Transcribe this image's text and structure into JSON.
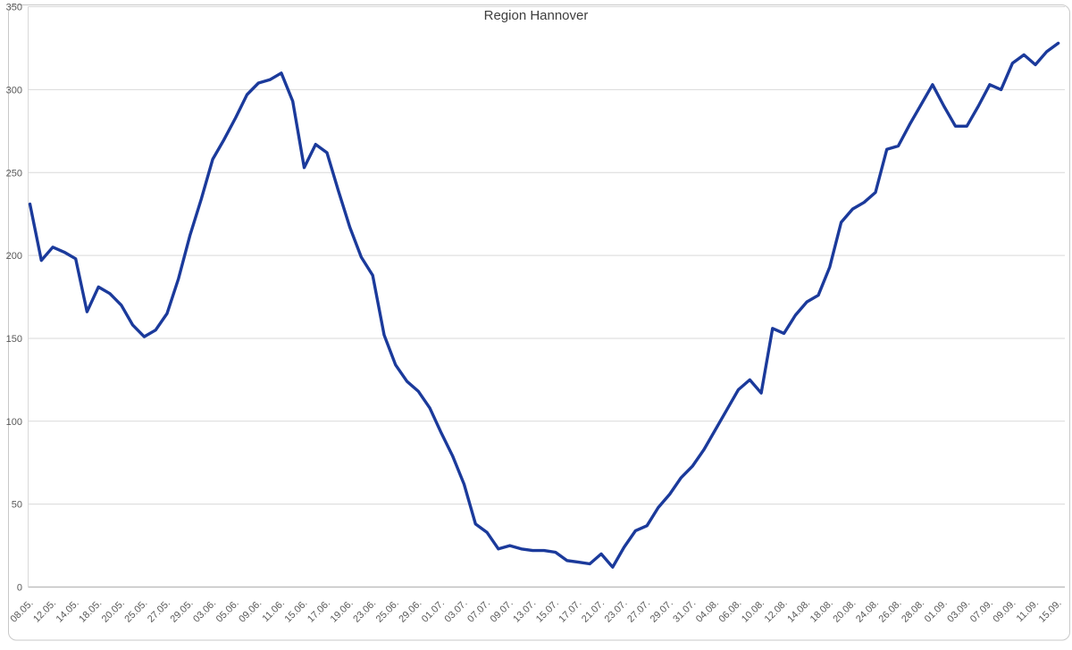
{
  "chart_data": {
    "type": "line",
    "title": "Region Hannover",
    "xlabel": "",
    "ylabel": "",
    "ylim": [
      0,
      350
    ],
    "yticks": [
      0,
      50,
      100,
      150,
      200,
      250,
      300,
      350
    ],
    "grid": "horizontal",
    "legend": "none",
    "x_tick_labels": [
      "08.05.",
      "12.05.",
      "14.05.",
      "18.05.",
      "20.05.",
      "25.05.",
      "27.05.",
      "29.05.",
      "03.06.",
      "05.06.",
      "09.06.",
      "11.06.",
      "15.06.",
      "17.06.",
      "19.06.",
      "23.06.",
      "25.06.",
      "29.06.",
      "01.07.",
      "03.07.",
      "07.07.",
      "09.07.",
      "13.07.",
      "15.07.",
      "17.07.",
      "21.07.",
      "23.07.",
      "27.07.",
      "29.07.",
      "31.07.",
      "04.08.",
      "06.08.",
      "10.08.",
      "12.08.",
      "14.08.",
      "18.08.",
      "20.08.",
      "24.08.",
      "26.08.",
      "28.08.",
      "01.09.",
      "03.09.",
      "07.09.",
      "09.09.",
      "11.09.",
      "15.09."
    ],
    "points_per_x_tick": 2,
    "series": [
      {
        "name": "Region Hannover",
        "values": [
          231,
          197,
          205,
          202,
          198,
          166,
          181,
          177,
          170,
          158,
          151,
          155,
          165,
          186,
          212,
          234,
          258,
          270,
          283,
          297,
          304,
          306,
          310,
          293,
          253,
          267,
          262,
          239,
          217,
          199,
          188,
          152,
          134,
          124,
          118,
          108,
          93,
          79,
          62,
          38,
          33,
          23,
          25,
          23,
          22,
          22,
          21,
          16,
          15,
          14,
          20,
          12,
          24,
          34,
          37,
          48,
          56,
          66,
          73,
          83,
          95,
          107,
          119,
          125,
          117,
          156,
          153,
          164,
          172,
          176,
          193,
          220,
          228,
          232,
          238,
          264,
          266,
          279,
          291,
          303,
          290,
          278,
          278,
          290,
          303,
          300,
          316,
          321,
          315,
          323,
          328
        ]
      }
    ],
    "colors": {
      "line": "#1b3a9b",
      "gridline": "#d9d9d9",
      "axis_line": "#bfbfbf",
      "axis_text": "#595959",
      "title_text": "#3e3e3e",
      "frame_border": "#c9c9c9",
      "background": "#ffffff"
    }
  }
}
